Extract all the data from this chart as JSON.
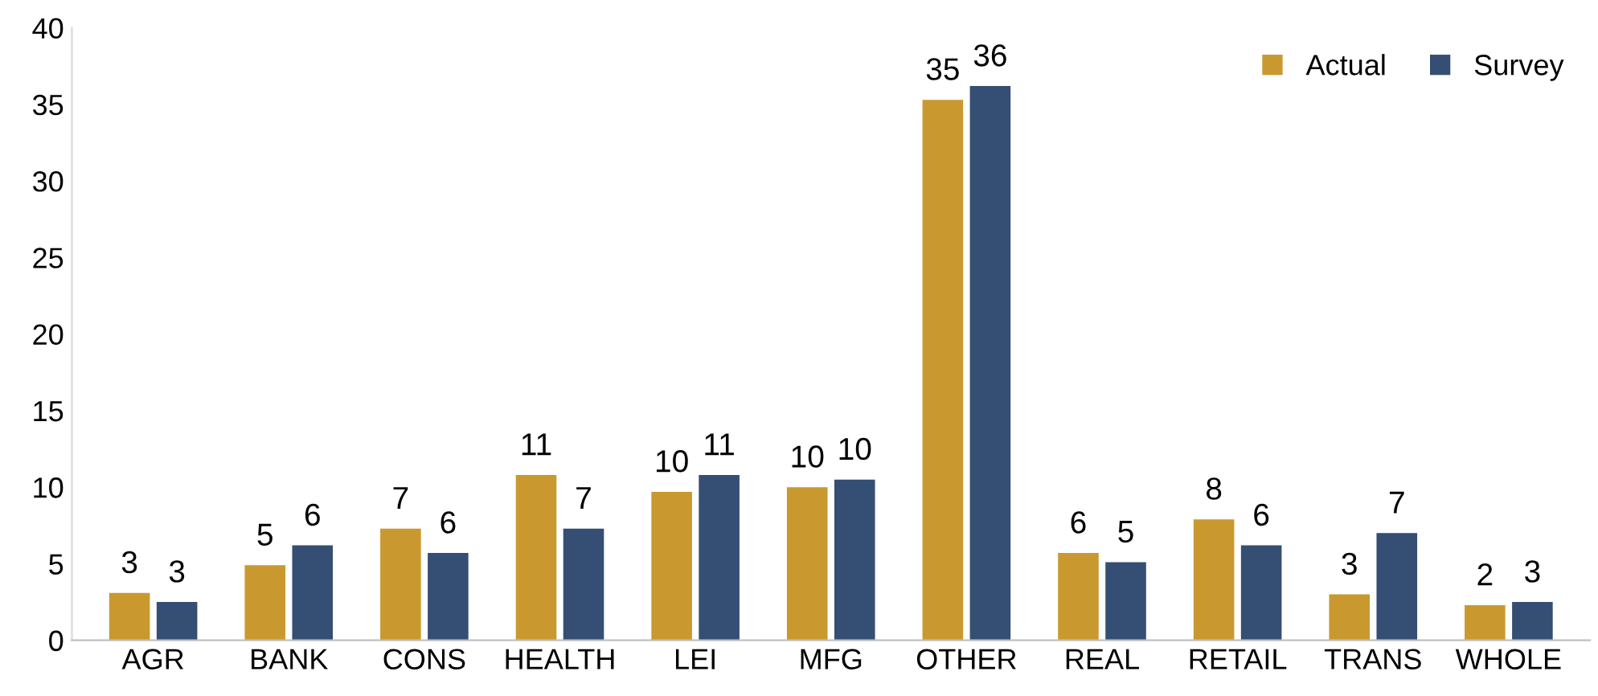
{
  "chart_data": {
    "type": "bar",
    "categories": [
      "AGR",
      "BANK",
      "CONS",
      "HEALTH",
      "LEI",
      "MFG",
      "OTHER",
      "REAL",
      "RETAIL",
      "TRANS",
      "WHOLE"
    ],
    "series": [
      {
        "name": "Actual",
        "color": "#c9992f",
        "values": [
          3.1,
          4.9,
          7.3,
          10.8,
          9.7,
          10.0,
          35.3,
          5.7,
          7.9,
          3.0,
          2.3
        ],
        "value_labels": [
          "3",
          "5",
          "7",
          "11",
          "10",
          "10",
          "35",
          "6",
          "8",
          "3",
          "2"
        ]
      },
      {
        "name": "Survey",
        "color": "#354e73",
        "values": [
          2.5,
          6.2,
          5.7,
          7.3,
          10.8,
          10.5,
          36.2,
          5.1,
          6.2,
          7.0,
          2.5
        ],
        "value_labels": [
          "3",
          "6",
          "6",
          "7",
          "11",
          "10",
          "36",
          "5",
          "6",
          "7",
          "3"
        ]
      }
    ],
    "ylim": [
      0,
      40
    ],
    "yticks": [
      0,
      5,
      10,
      15,
      20,
      25,
      30,
      35,
      40
    ],
    "grid": false,
    "legend": "top right"
  }
}
